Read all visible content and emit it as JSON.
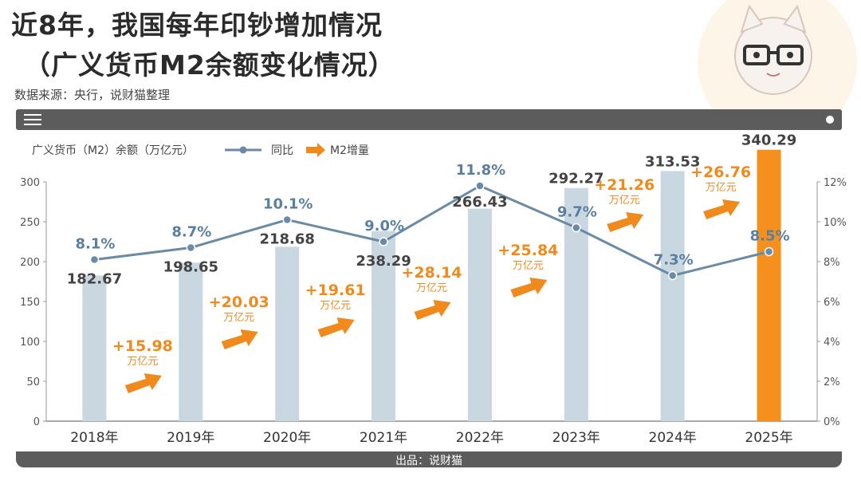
{
  "title_line1": "近8年，我国每年印钞增加情况",
  "title_line2": "（广义货币M2余额变化情况）",
  "source": "数据来源：央行，说财猫整理",
  "credit": "出品：说财猫",
  "icons": [
    "menu-icon",
    "dot-icon",
    "cat-mascot-icon",
    "arrow-icon"
  ],
  "colors": {
    "bar": "#c9d7e0",
    "bar_highlight": "#f5901f",
    "line": "#6a8aa5",
    "increase": "#f08a1c"
  },
  "chart_data": {
    "type": "bar",
    "categories": [
      "2018年",
      "2019年",
      "2020年",
      "2021年",
      "2022年",
      "2023年",
      "2024年",
      "2025年"
    ],
    "legend": {
      "bar_label": "广义货币（M2）余额（万亿元）",
      "line_label": "同比",
      "arrow_label": "M2增量"
    },
    "series": [
      {
        "values": [
          182.67,
          198.65,
          218.68,
          238.29,
          266.43,
          292.27,
          313.53,
          340.29
        ],
        "value_labels": [
          "182.67",
          "198.65",
          "218.68",
          "238.29",
          "266.43",
          "292.27",
          "313.53",
          "340.29"
        ]
      },
      {
        "values": [
          8.1,
          8.7,
          10.1,
          9.0,
          11.8,
          9.7,
          7.3,
          8.5
        ],
        "value_labels": [
          "8.1%",
          "8.7%",
          "10.1%",
          "9.0%",
          "11.8%",
          "9.7%",
          "7.3%",
          "8.5%"
        ]
      }
    ],
    "increments": [
      {
        "value": 15.98,
        "label": "+15.98",
        "unit": "万亿元"
      },
      {
        "value": 20.03,
        "label": "+20.03",
        "unit": "万亿元"
      },
      {
        "value": 19.61,
        "label": "+19.61",
        "unit": "万亿元"
      },
      {
        "value": 28.14,
        "label": "+28.14",
        "unit": "万亿元"
      },
      {
        "value": 25.84,
        "label": "+25.84",
        "unit": "万亿元"
      },
      {
        "value": 21.26,
        "label": "+21.26",
        "unit": "万亿元"
      },
      {
        "value": 26.76,
        "label": "+26.76",
        "unit": "万亿元"
      }
    ],
    "y_left": {
      "ylim": [
        0,
        300
      ],
      "ticks": [
        "0",
        "50",
        "100",
        "150",
        "200",
        "250",
        "300"
      ]
    },
    "y_right": {
      "ylim": [
        0,
        12
      ],
      "ticks": [
        "0%",
        "2%",
        "4%",
        "6%",
        "8%",
        "10%",
        "12%"
      ]
    },
    "highlight_index": 7,
    "grid": false,
    "legend_position": "top-left"
  }
}
